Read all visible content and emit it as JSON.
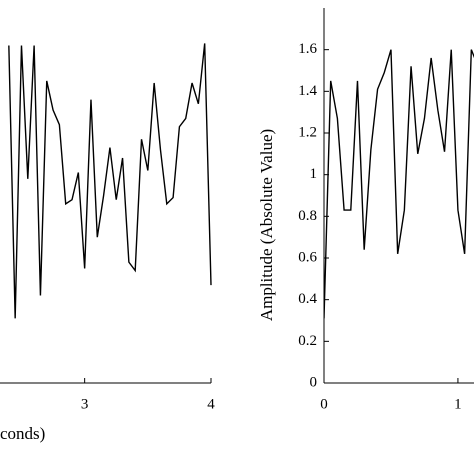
{
  "chart_data": [
    {
      "type": "line",
      "xlabel": "conds)",
      "x": [
        2.4,
        2.45,
        2.5,
        2.55,
        2.6,
        2.65,
        2.7,
        2.75,
        2.8,
        2.85,
        2.9,
        2.95,
        3.0,
        3.05,
        3.1,
        3.15,
        3.2,
        3.25,
        3.3,
        3.35,
        3.4,
        3.45,
        3.5,
        3.55,
        3.6,
        3.65,
        3.7,
        3.75,
        3.8,
        3.85,
        3.9,
        3.95,
        4.0
      ],
      "series": [
        {
          "color": "#000000",
          "values": [
            1.62,
            0.31,
            1.62,
            0.98,
            1.62,
            0.42,
            1.45,
            1.31,
            1.24,
            0.86,
            0.88,
            1.01,
            0.55,
            1.36,
            0.7,
            0.9,
            1.13,
            0.88,
            1.08,
            0.58,
            0.54,
            1.17,
            1.02,
            1.44,
            1.12,
            0.86,
            0.89,
            1.23,
            1.27,
            1.44,
            1.34,
            1.63,
            0.47
          ]
        }
      ],
      "xlim": [
        2.33,
        4
      ],
      "xticks": [
        3,
        4
      ],
      "ylim": [
        0,
        1.8
      ]
    },
    {
      "type": "line",
      "ylabel": "Amplitude (Absolute Value)",
      "x": [
        0,
        0.05,
        0.1,
        0.15,
        0.2,
        0.25,
        0.3,
        0.35,
        0.4,
        0.45,
        0.5,
        0.55,
        0.6,
        0.65,
        0.7,
        0.75,
        0.8,
        0.85,
        0.9,
        0.95,
        1.0,
        1.05,
        1.1,
        1.15
      ],
      "series": [
        {
          "color": "#000000",
          "values": [
            0.31,
            1.45,
            1.27,
            0.83,
            0.83,
            1.45,
            0.64,
            1.12,
            1.41,
            1.49,
            1.6,
            0.62,
            0.83,
            1.52,
            1.1,
            1.27,
            1.56,
            1.31,
            1.11,
            1.6,
            0.83,
            0.62,
            1.6,
            1.52
          ]
        }
      ],
      "xlim": [
        0,
        1.12
      ],
      "xticks": [
        0,
        1
      ],
      "ylim": [
        0,
        1.8
      ],
      "yticks": [
        0,
        0.2,
        0.4,
        0.6,
        0.8,
        1,
        1.2,
        1.4,
        1.6
      ]
    }
  ]
}
